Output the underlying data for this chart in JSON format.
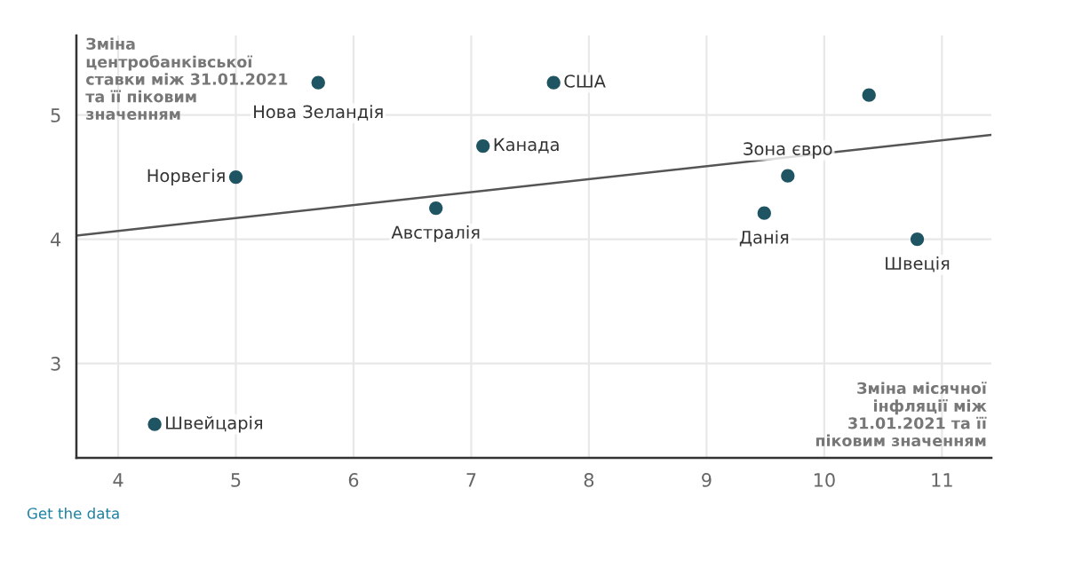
{
  "chart_data": {
    "type": "scatter",
    "xlabel": "Зміна місячної інфляції між 31.01.2021 та її піковим значенням",
    "ylabel": "Зміна центробанківської ставки між 31.01.2021 та її піковим значенням",
    "xlim": [
      3.645,
      11.42
    ],
    "ylim": [
      2.24,
      5.64
    ],
    "xticks": [
      4,
      5,
      6,
      7,
      8,
      9,
      10,
      11
    ],
    "yticks": [
      3,
      4,
      5
    ],
    "grid": true,
    "marker": "circle",
    "series": [
      {
        "color": "#1f5462",
        "x": [
          5.7,
          7.7,
          10.38,
          7.1,
          5.0,
          6.7,
          9.69,
          9.49,
          10.79,
          4.31
        ],
        "values": [
          5.26,
          5.26,
          5.16,
          4.75,
          4.5,
          4.25,
          4.51,
          4.21,
          4.0,
          2.51
        ]
      },
      {
        "type": "line",
        "marker": "none",
        "color": "#555555",
        "x": [
          3.645,
          11.42
        ],
        "values": [
          4.03,
          4.84
        ]
      }
    ],
    "annotations": [
      {
        "text": "Нова Зеландія",
        "x": 5.7,
        "y": 5.26
      },
      {
        "text": "США",
        "x": 7.7,
        "y": 5.26
      },
      {
        "text": "Канада",
        "x": 7.1,
        "y": 4.75
      },
      {
        "text": "Норвегія",
        "x": 5.0,
        "y": 4.5
      },
      {
        "text": "Австралія",
        "x": 6.7,
        "y": 4.25
      },
      {
        "text": "Зона євро",
        "x": 9.69,
        "y": 4.51
      },
      {
        "text": "Данія",
        "x": 9.49,
        "y": 4.21
      },
      {
        "text": "Швеція",
        "x": 10.79,
        "y": 4.0
      },
      {
        "text": "Швейцарія",
        "x": 4.31,
        "y": 2.51
      },
      "Get the data"
    ]
  }
}
